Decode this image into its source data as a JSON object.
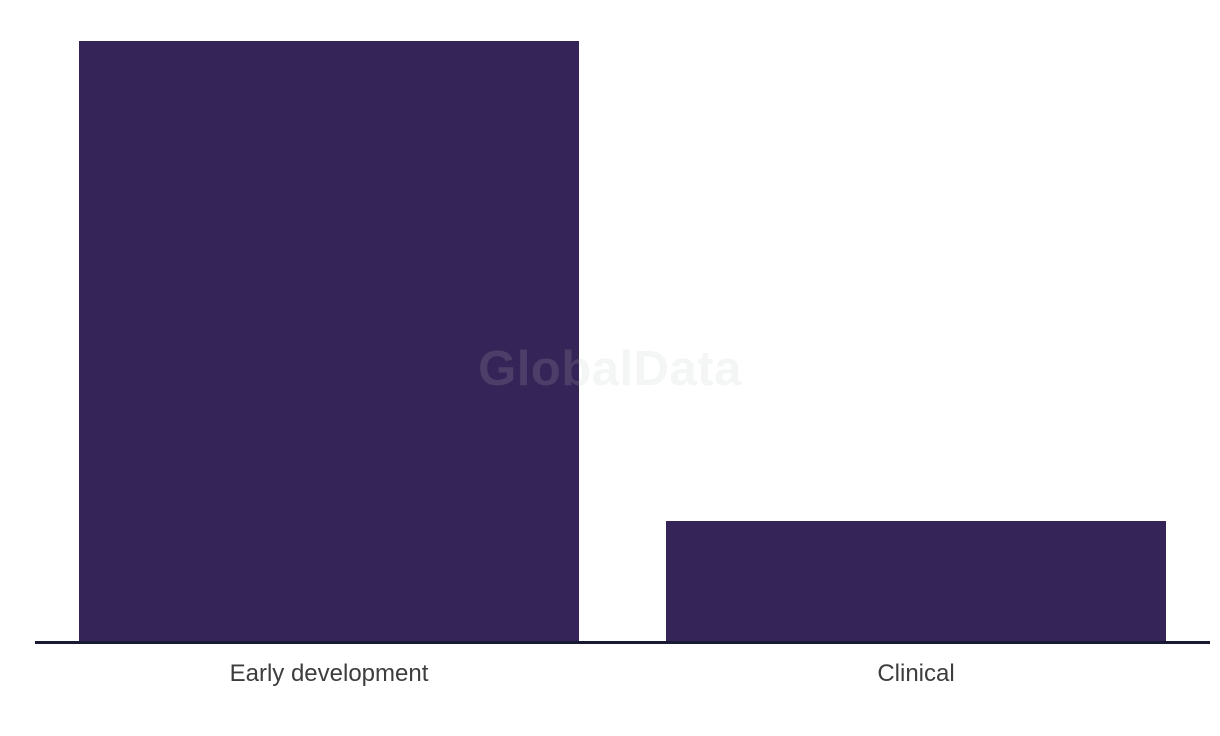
{
  "watermark": "GlobalData",
  "colors": {
    "background": "#ffffff",
    "bar": "#352457",
    "axis_line": "#181a33",
    "label_text": "#3d3d3d",
    "watermark_text": "rgba(190,193,193,0.17)"
  },
  "chart_data": {
    "type": "bar",
    "categories": [
      "Early development",
      "Clinical"
    ],
    "values": [
      5,
      1
    ],
    "title": "",
    "xlabel": "",
    "ylabel": "",
    "ylim": [
      0,
      5
    ],
    "grid": false,
    "legend": false,
    "watermark": "GlobalData"
  }
}
